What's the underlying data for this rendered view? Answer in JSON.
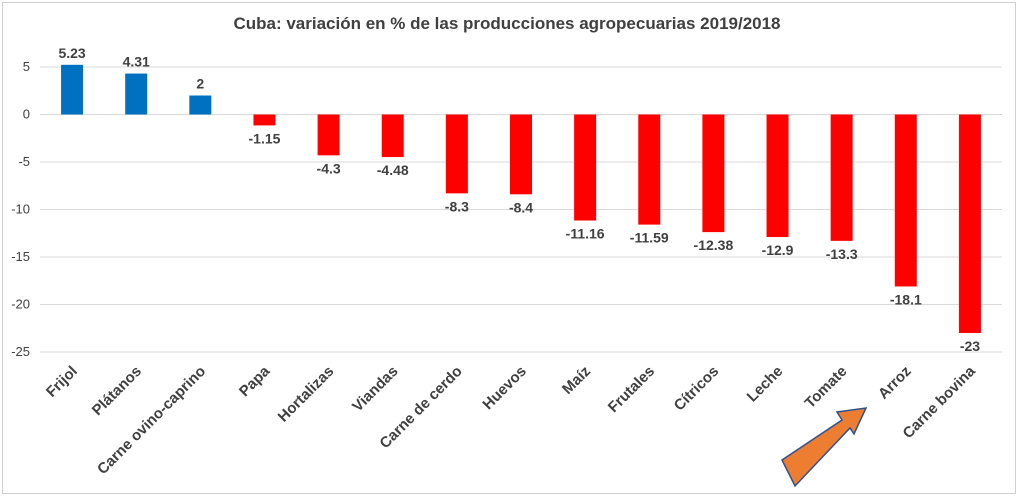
{
  "chart_data": {
    "type": "bar",
    "title": "Cuba: variación en % de las producciones agropecuarias 2019/2018",
    "categories": [
      "Frijol",
      "Plátanos",
      "Carne ovino-caprino",
      "Papa",
      "Hortalizas",
      "Viandas",
      "Carne de cerdo",
      "Huevos",
      "Maíz",
      "Frutales",
      "Cítricos",
      "Leche",
      "Tomate",
      "Arroz",
      "Carne bovina"
    ],
    "values": [
      5.23,
      4.31,
      2,
      -1.15,
      -4.3,
      -4.48,
      -8.3,
      -8.4,
      -11.16,
      -11.59,
      -12.38,
      -12.9,
      -13.3,
      -18.1,
      -23
    ],
    "value_labels": [
      "5.23",
      "4.31",
      "2",
      "-1.15",
      "-4.3",
      "-4.48",
      "-8.3",
      "-8.4",
      "-11.16",
      "-11.59",
      "-12.38",
      "-12.9",
      "-13.3",
      "-18.1",
      "-23"
    ],
    "y_ticks": [
      5,
      0,
      -5,
      -10,
      -15,
      -20,
      -25
    ],
    "y_tick_labels": [
      "5",
      "0",
      "-5",
      "-10",
      "-15",
      "-20",
      "-25"
    ],
    "ylim": [
      -25,
      5
    ],
    "grid": true,
    "xlabel": "",
    "ylabel": "",
    "colors": {
      "positive": "#0070c0",
      "negative": "#ff0000",
      "grid": "#d9d9d9",
      "arrow": "#ed7d31",
      "arrow_border": "#2f528f",
      "text": "#404040"
    },
    "annotations": [
      {
        "type": "arrow",
        "points_to": "Arroz"
      }
    ]
  }
}
